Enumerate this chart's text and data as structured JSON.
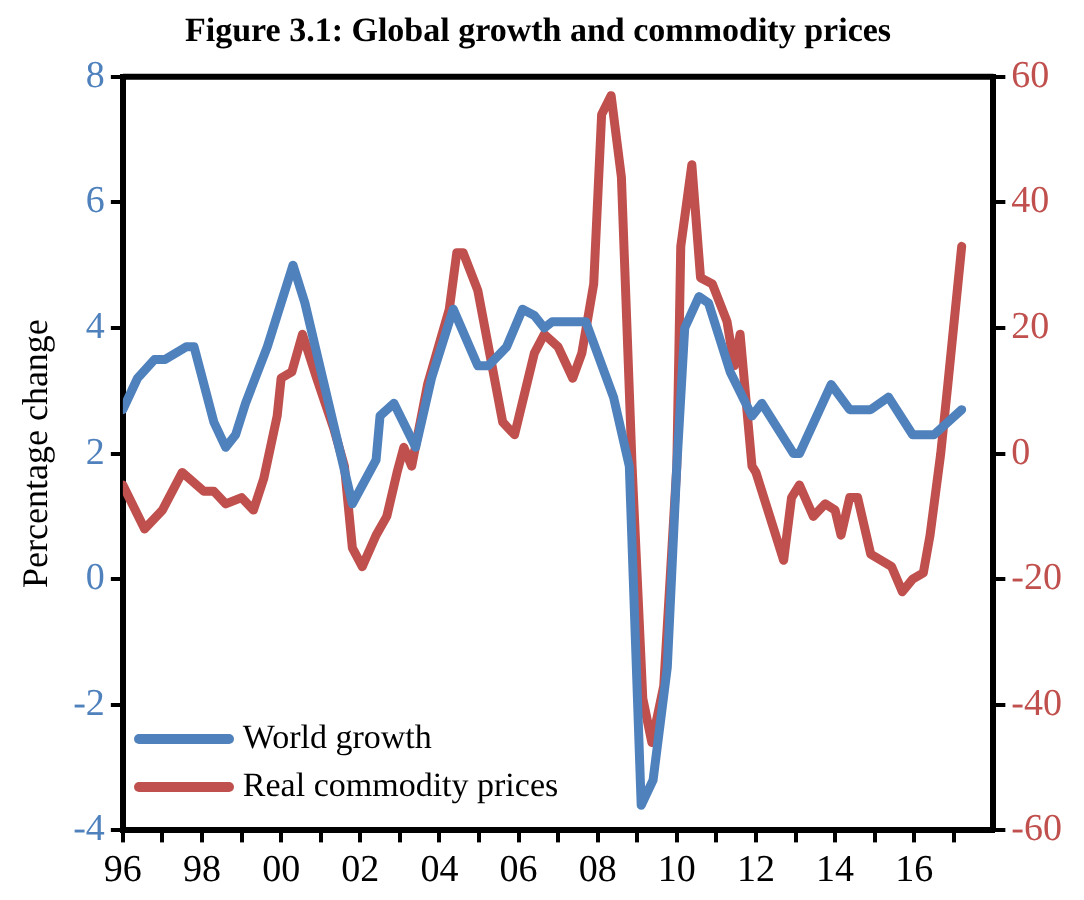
{
  "chart_data": {
    "type": "line",
    "title": "Figure 3.1: Global growth and commodity prices",
    "ylabel": "Percentage change",
    "xlim": [
      1996,
      2018
    ],
    "xticks": [
      {
        "value": 1996,
        "label": "96"
      },
      {
        "value": 1997,
        "label": null
      },
      {
        "value": 1998,
        "label": "98"
      },
      {
        "value": 1999,
        "label": null
      },
      {
        "value": 2000,
        "label": "00"
      },
      {
        "value": 2001,
        "label": null
      },
      {
        "value": 2002,
        "label": "02"
      },
      {
        "value": 2003,
        "label": null
      },
      {
        "value": 2004,
        "label": "04"
      },
      {
        "value": 2005,
        "label": null
      },
      {
        "value": 2006,
        "label": "06"
      },
      {
        "value": 2007,
        "label": null
      },
      {
        "value": 2008,
        "label": "08"
      },
      {
        "value": 2009,
        "label": null
      },
      {
        "value": 2010,
        "label": "10"
      },
      {
        "value": 2011,
        "label": null
      },
      {
        "value": 2012,
        "label": "12"
      },
      {
        "value": 2013,
        "label": null
      },
      {
        "value": 2014,
        "label": "14"
      },
      {
        "value": 2015,
        "label": null
      },
      {
        "value": 2016,
        "label": "16"
      },
      {
        "value": 2017,
        "label": null
      }
    ],
    "ylim": [
      -4,
      8
    ],
    "yticks": [
      -4,
      -2,
      0,
      2,
      4,
      6,
      8
    ],
    "y2lim": [
      -60,
      60
    ],
    "y2ticks": [
      -60,
      -40,
      -20,
      0,
      20,
      40,
      60
    ],
    "grid": false,
    "legend": "bottom left",
    "marker": "none",
    "line_style": "solid",
    "series": [
      {
        "name": "World growth",
        "color": "#4f81bd",
        "x": [
          1996.0,
          1996.37,
          1996.8,
          1997.07,
          1997.6,
          1997.8,
          1998.3,
          1998.6,
          1998.85,
          1999.1,
          1999.65,
          2000.3,
          2000.6,
          2001.05,
          2001.8,
          2002.4,
          2002.5,
          2002.85,
          2003.4,
          2003.8,
          2004.35,
          2004.97,
          2005.24,
          2005.7,
          2006.1,
          2006.4,
          2006.65,
          2006.85,
          2007.1,
          2007.7,
          2008.4,
          2008.8,
          2009.1,
          2009.4,
          2009.76,
          2010.0,
          2010.2,
          2010.56,
          2010.8,
          2011.35,
          2011.9,
          2012.15,
          2012.95,
          2013.1,
          2013.9,
          2014.37,
          2014.9,
          2015.35,
          2015.96,
          2016.5,
          2017.2
        ],
        "values": [
          2.7,
          3.2,
          3.5,
          3.5,
          3.7,
          3.7,
          2.5,
          2.1,
          2.3,
          2.8,
          3.7,
          5.0,
          4.4,
          3.2,
          1.2,
          1.9,
          2.6,
          2.8,
          2.1,
          3.2,
          4.3,
          3.4,
          3.4,
          3.7,
          4.3,
          4.2,
          4.0,
          4.1,
          4.1,
          4.1,
          2.9,
          1.8,
          -3.6,
          -3.2,
          -1.4,
          1.8,
          4.0,
          4.5,
          4.4,
          3.3,
          2.6,
          2.8,
          2.0,
          2.0,
          3.1,
          2.7,
          2.7,
          2.9,
          2.3,
          2.3,
          2.7
        ]
      },
      {
        "name": "Real commodity prices",
        "color": "#c0504d",
        "axis": "y2",
        "x": [
          1996.0,
          1996.55,
          1997.0,
          1997.5,
          1998.05,
          1998.3,
          1998.6,
          1999.0,
          1999.3,
          1999.56,
          1999.9,
          2000.0,
          2000.27,
          2000.54,
          2000.9,
          2001.33,
          2001.6,
          2001.8,
          2002.05,
          2002.4,
          2002.67,
          2002.93,
          2003.1,
          2003.3,
          2003.7,
          2004.25,
          2004.44,
          2004.6,
          2004.97,
          2005.3,
          2005.6,
          2005.9,
          2006.4,
          2006.65,
          2007.0,
          2007.37,
          2007.6,
          2007.9,
          2008.1,
          2008.34,
          2008.6,
          2008.87,
          2009.14,
          2009.37,
          2009.67,
          2010.0,
          2010.1,
          2010.38,
          2010.6,
          2010.9,
          2011.27,
          2011.45,
          2011.6,
          2011.9,
          2012.0,
          2012.7,
          2012.9,
          2013.1,
          2013.45,
          2013.75,
          2014.0,
          2014.15,
          2014.37,
          2014.57,
          2014.9,
          2015.43,
          2015.7,
          2015.96,
          2016.23,
          2016.4,
          2016.67,
          2016.85,
          2017.2
        ],
        "values": [
          -5,
          -12,
          -9,
          -3,
          -6,
          -6,
          -8,
          -7,
          -9,
          -4,
          6,
          12,
          13,
          19,
          12,
          4,
          -2,
          -15,
          -18,
          -13,
          -10,
          -3,
          1,
          -2,
          11,
          23,
          32,
          32,
          26,
          15,
          5,
          3,
          16,
          19,
          17,
          12,
          16,
          27,
          54,
          57,
          44,
          -2,
          -39,
          -46,
          -37,
          -2,
          33,
          46,
          28,
          27,
          21,
          14,
          19,
          -2,
          -3,
          -17,
          -7,
          -5,
          -10,
          -8,
          -9,
          -13,
          -7,
          -7,
          -16,
          -18,
          -22,
          -20,
          -19,
          -13,
          0,
          11,
          33
        ]
      }
    ]
  }
}
